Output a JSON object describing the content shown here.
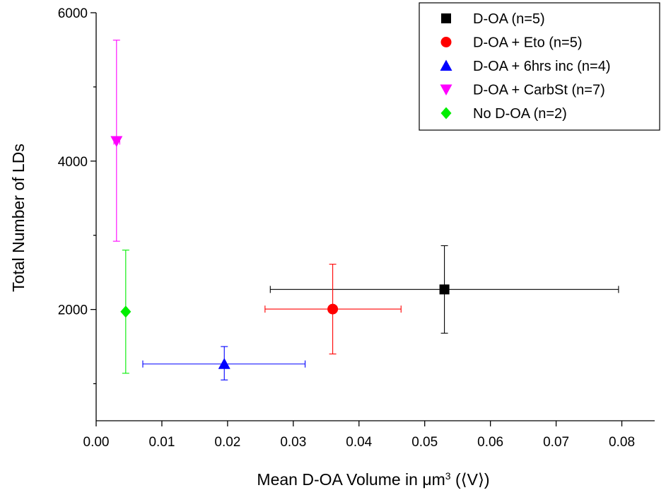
{
  "chart_data": {
    "type": "scatter",
    "xlabel_main": "Mean D-OA Volume in ",
    "xlabel_unit": "μm",
    "xlabel_sup": "3",
    "xlabel_tail": " (⟨V⟩)",
    "ylabel": "Total Number of LDs",
    "xlim": [
      0.0,
      0.085
    ],
    "ylim": [
      500,
      6000
    ],
    "x_ticks": [
      0.0,
      0.01,
      0.02,
      0.03,
      0.04,
      0.05,
      0.06,
      0.07,
      0.08
    ],
    "x_tick_labels": [
      "0.00",
      "0.01",
      "0.02",
      "0.03",
      "0.04",
      "0.05",
      "0.06",
      "0.07",
      "0.08"
    ],
    "y_major_ticks": [
      2000,
      4000,
      6000
    ],
    "y_tick_labels": [
      "2000",
      "4000",
      "6000"
    ],
    "y_minor_ticks": [
      1000,
      3000,
      5000
    ],
    "grid": false,
    "legend_position": "top-right",
    "series": [
      {
        "name": "D-OA (n=5)",
        "marker": "square",
        "color": "#000000",
        "x": 0.053,
        "y": 2270,
        "x_err": [
          0.0265,
          0.0795
        ],
        "y_err": [
          1680,
          2860
        ]
      },
      {
        "name": "D-OA + Eto (n=5)",
        "marker": "circle",
        "color": "#ff0000",
        "x": 0.036,
        "y": 2005,
        "x_err": [
          0.0257,
          0.0464
        ],
        "y_err": [
          1400,
          2610
        ]
      },
      {
        "name": "D-OA + 6hrs inc (n=4)",
        "marker": "triangle-up",
        "color": "#0000ff",
        "x": 0.0195,
        "y": 1265,
        "x_err": [
          0.0071,
          0.0318
        ],
        "y_err": [
          1050,
          1500
        ]
      },
      {
        "name": "D-OA + CarbSt (n=7)",
        "marker": "triangle-down",
        "color": "#ff00ff",
        "x": 0.0031,
        "y": 4270,
        "x_err": [
          0.0027,
          0.0036
        ],
        "y_err": [
          2920,
          5630
        ]
      },
      {
        "name": "No D-OA (n=2)",
        "marker": "diamond",
        "color": "#00ee00",
        "x": 0.0045,
        "y": 1970,
        "x_err": [
          0.0045,
          0.0045
        ],
        "y_err": [
          1140,
          2800
        ]
      }
    ]
  }
}
